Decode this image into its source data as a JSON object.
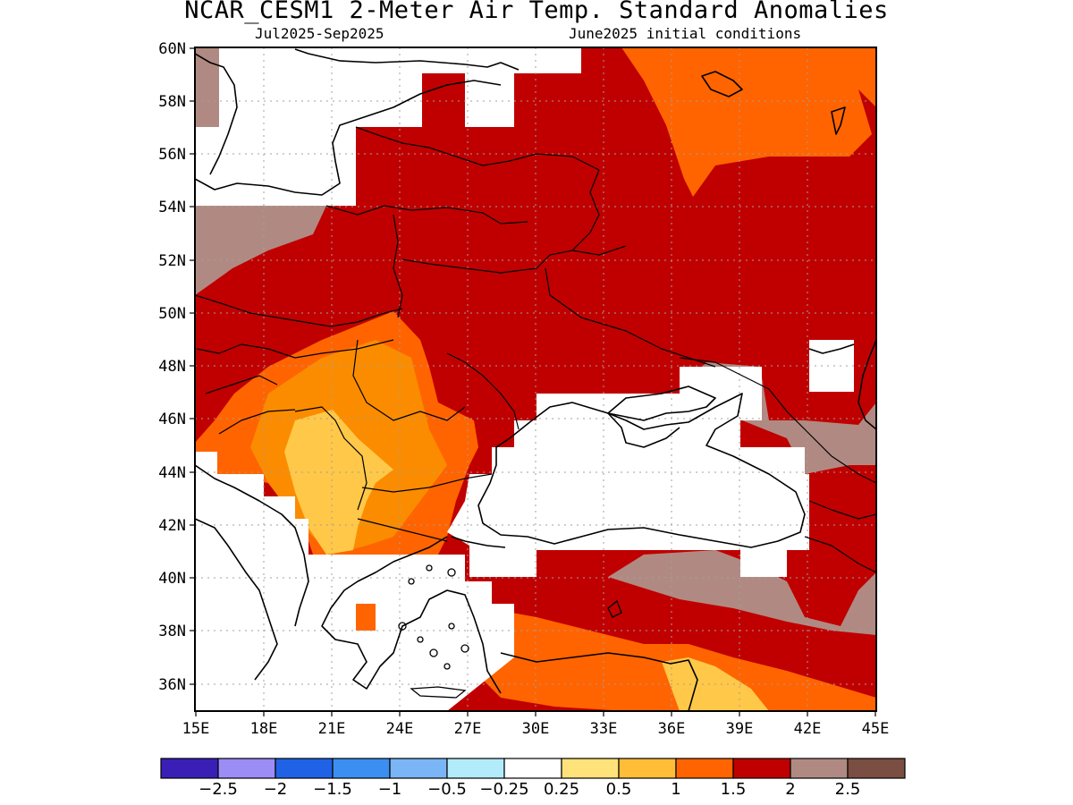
{
  "title": "NCAR_CESM1 2-Meter Air Temp. Standard Anomalies",
  "subtitle_left": "Jul2025-Sep2025",
  "subtitle_right": "June2025 initial conditions",
  "axes": {
    "lon_labels": [
      "15E",
      "18E",
      "21E",
      "24E",
      "27E",
      "30E",
      "33E",
      "36E",
      "39E",
      "42E",
      "45E"
    ],
    "lat_labels": [
      "60N",
      "58N",
      "56N",
      "54N",
      "52N",
      "50N",
      "48N",
      "46N",
      "44N",
      "42N",
      "40N",
      "38N",
      "36N"
    ]
  },
  "legend": {
    "colors": [
      "#3a1fb7",
      "#9c8cf5",
      "#1f62e6",
      "#3b8ff0",
      "#7ab5f6",
      "#b2ecfa",
      "#ffffff",
      "#ffe27a",
      "#ffbd38",
      "#ff6400",
      "#c00000",
      "#b08a82",
      "#7a4e42"
    ],
    "labels": [
      "-2.5",
      "-2",
      "-1.5",
      "-1",
      "-0.5",
      "-0.25",
      "0.25",
      "0.5",
      "1",
      "1.5",
      "2",
      "2.5"
    ]
  },
  "colors": {
    "anom_05_1": "#ffc848",
    "anom_1_15": "#fb8c00",
    "anom_15_2": "#ff6400",
    "anom_2_25": "#c00000",
    "anom_gt_25": "#b08a82",
    "no_signal": "#ffffff"
  }
}
